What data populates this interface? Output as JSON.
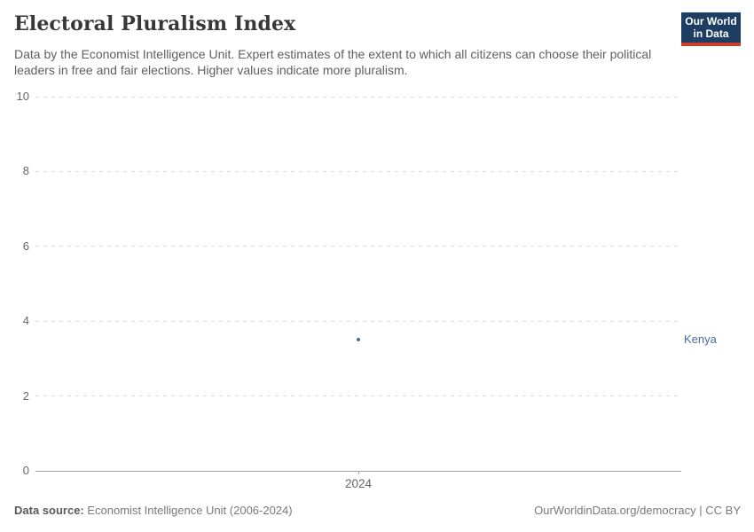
{
  "header": {
    "title": "Electoral Pluralism Index",
    "subtitle": "Data by the Economist Intelligence Unit. Expert estimates of the extent to which all citizens can choose their political leaders in free and fair elections. Higher values indicate more pluralism.",
    "logo": {
      "line1": "Our World",
      "line2": "in Data",
      "bg_color": "#1d3d63",
      "accent_color": "#cf3c28"
    }
  },
  "chart_data": {
    "type": "scatter",
    "title": "Electoral Pluralism Index",
    "xlabel": "",
    "ylabel": "",
    "ylim": [
      0,
      10
    ],
    "y_ticks": [
      0,
      2,
      4,
      6,
      8,
      10
    ],
    "x_ticks": [
      "2024"
    ],
    "grid": "horizontal-dashed",
    "legend_position": "entity-label-right",
    "series": [
      {
        "name": "Kenya",
        "color": "#4c6a9c",
        "points": [
          {
            "x": 2024,
            "y": 3.5
          }
        ]
      }
    ]
  },
  "footer": {
    "data_source_label": "Data source:",
    "data_source_value": " Economist Intelligence Unit (2006-2024)",
    "credit": "OurWorldinData.org/democracy | CC BY"
  }
}
